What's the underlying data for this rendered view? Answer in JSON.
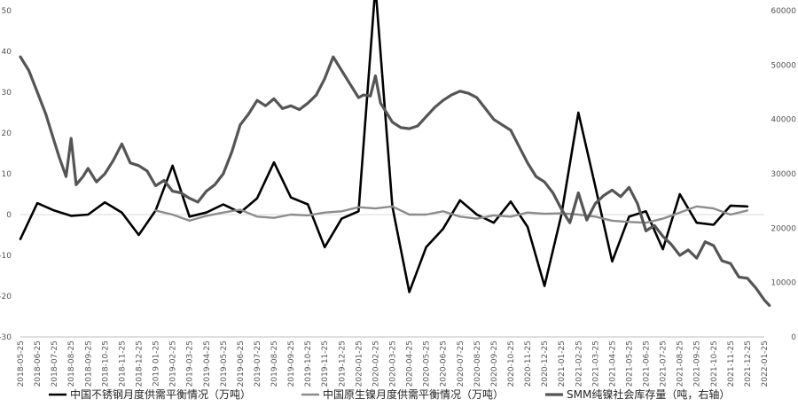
{
  "chart_data": {
    "type": "line",
    "x": [
      "2018-05-25",
      "2018-06-25",
      "2018-07-25",
      "2018-08-25",
      "2018-09-25",
      "2018-10-25",
      "2018-11-25",
      "2018-12-25",
      "2019-01-25",
      "2019-02-25",
      "2019-03-25",
      "2019-04-25",
      "2019-05-25",
      "2019-06-25",
      "2019-07-25",
      "2019-08-25",
      "2019-09-25",
      "2019-10-25",
      "2019-11-25",
      "2019-12-25",
      "2020-01-25",
      "2020-02-25",
      "2020-03-25",
      "2020-04-25",
      "2020-05-25",
      "2020-06-25",
      "2020-07-25",
      "2020-08-25",
      "2020-09-25",
      "2020-10-25",
      "2020-11-25",
      "2020-12-25",
      "2021-01-25",
      "2021-02-25",
      "2021-03-25",
      "2021-04-25",
      "2021-05-25",
      "2021-06-25",
      "2021-07-25",
      "2021-08-25",
      "2021-09-25",
      "2021-10-25",
      "2021-11-25",
      "2021-12-25",
      "2022-01-25"
    ],
    "x_tick_labels": [
      "2018-05-25",
      "2018-06-25",
      "2018-07-25",
      "2018-08-25",
      "2018-09-25",
      "2018-10-25",
      "2018-11-25",
      "2018-12-25",
      "2019 01-25",
      "2019-02-25",
      "2019-03-25",
      "2019-04-25",
      "2019-05-25",
      "2019-06-25",
      "2019-07-25",
      "2019-08-25",
      "2019-09-25",
      "2019-10-25",
      "2019-11-25",
      "2019-12-25",
      "2020-01-25",
      "2020-02-25",
      "2020-03-25",
      "2020-04-25",
      "2020-05-25",
      "2020-06-25",
      "2020-07-25",
      "2020-08-25",
      "2020-09-25",
      "2020-10-25",
      "2020-11-25",
      "2020-12-25",
      "2021-01-25",
      "2021-02-25",
      "2021-03-25",
      "2021-04-25",
      "2021-05-25",
      "2021-06-25",
      "2021-07-25",
      "2021-08-25",
      "2021-09-25",
      "2021-10-25",
      "2021-11-25",
      "2021-12-25",
      "2022-01-25"
    ],
    "y_left": {
      "min": -30,
      "max": 50,
      "ticks": [
        "-30",
        "-20",
        "-10",
        "0",
        "10",
        "20",
        "30",
        "40",
        "50"
      ]
    },
    "y_right": {
      "min": 0,
      "max": 60000,
      "ticks": [
        "0",
        "10000",
        "20000",
        "30000",
        "40000",
        "50000",
        "60000"
      ]
    },
    "grid": false,
    "legend_position": "bottom",
    "series": [
      {
        "name": "中国不锈钢月度供需平衡情况（万吨）",
        "axis": "left",
        "color": "#000000",
        "values": [
          [
            0,
            -6
          ],
          [
            1,
            2.8
          ],
          [
            2,
            1
          ],
          [
            3,
            -0.3
          ],
          [
            4,
            0
          ],
          [
            5,
            3
          ],
          [
            6,
            0.5
          ],
          [
            7,
            -5
          ],
          [
            8,
            1
          ],
          [
            9,
            12
          ],
          [
            10,
            -0.5
          ],
          [
            11,
            0.5
          ],
          [
            12,
            2.5
          ],
          [
            13,
            0.5
          ],
          [
            14,
            4
          ],
          [
            15,
            12.8
          ],
          [
            16,
            4.2
          ],
          [
            17,
            2.5
          ],
          [
            18,
            -8
          ],
          [
            19,
            -1
          ],
          [
            20,
            0.8
          ],
          [
            21,
            56
          ],
          [
            22,
            2
          ],
          [
            23,
            -19
          ],
          [
            24,
            -8
          ],
          [
            25,
            -3.5
          ],
          [
            26,
            3.5
          ],
          [
            27,
            0
          ],
          [
            28,
            -2
          ],
          [
            29,
            3.2
          ],
          [
            30,
            -3
          ],
          [
            31,
            -17.5
          ],
          [
            32,
            0
          ],
          [
            33,
            25
          ],
          [
            34,
            7
          ],
          [
            35,
            -11.5
          ],
          [
            36,
            -0.5
          ],
          [
            37,
            0.8
          ],
          [
            38,
            -8.5
          ],
          [
            39,
            5
          ],
          [
            40,
            -2
          ],
          [
            41,
            -2.5
          ],
          [
            42,
            2.2
          ],
          [
            43,
            2
          ]
        ]
      },
      {
        "name": "中国原生镍月度供需平衡情况（万吨）",
        "axis": "left",
        "color": "#8c8c8c",
        "values": [
          [
            8,
            1
          ],
          [
            9,
            0
          ],
          [
            10,
            -1.5
          ],
          [
            11,
            -0.3
          ],
          [
            12,
            0.5
          ],
          [
            13,
            1.2
          ],
          [
            14,
            -0.5
          ],
          [
            15,
            -0.8
          ],
          [
            16,
            0
          ],
          [
            17,
            -0.2
          ],
          [
            18,
            0.5
          ],
          [
            19,
            0.8
          ],
          [
            20,
            1.8
          ],
          [
            21,
            1.5
          ],
          [
            22,
            2
          ],
          [
            23,
            0
          ],
          [
            24,
            0
          ],
          [
            25,
            0.8
          ],
          [
            26,
            -0.5
          ],
          [
            27,
            -1
          ],
          [
            28,
            -0.2
          ],
          [
            29,
            -0.5
          ],
          [
            30,
            0.5
          ],
          [
            31,
            0.2
          ],
          [
            32,
            0.3
          ],
          [
            33,
            0
          ],
          [
            34,
            -0.5
          ],
          [
            35,
            -1.5
          ],
          [
            36,
            -1.8
          ],
          [
            37,
            -2
          ],
          [
            38,
            -1
          ],
          [
            39,
            0.5
          ],
          [
            40,
            2
          ],
          [
            41,
            1.5
          ],
          [
            42,
            0
          ],
          [
            43,
            1
          ]
        ]
      },
      {
        "name": "SMM纯镍社会库存量（吨，右轴）",
        "axis": "right",
        "color": "#555555",
        "values": [
          [
            0,
            51500
          ],
          [
            0.5,
            49000
          ],
          [
            1,
            45000
          ],
          [
            1.5,
            41000
          ],
          [
            2,
            36000
          ],
          [
            2.3,
            33000
          ],
          [
            2.7,
            29500
          ],
          [
            3,
            36500
          ],
          [
            3.3,
            28000
          ],
          [
            3.7,
            29500
          ],
          [
            4,
            31000
          ],
          [
            4.5,
            28500
          ],
          [
            5,
            30000
          ],
          [
            5.5,
            32500
          ],
          [
            6,
            35500
          ],
          [
            6.5,
            32000
          ],
          [
            7,
            31500
          ],
          [
            7.5,
            30500
          ],
          [
            8,
            27800
          ],
          [
            8.5,
            28800
          ],
          [
            9,
            26800
          ],
          [
            9.5,
            26500
          ],
          [
            10,
            25500
          ],
          [
            10.5,
            24800
          ],
          [
            11,
            26800
          ],
          [
            11.5,
            28000
          ],
          [
            12,
            30000
          ],
          [
            12.5,
            34000
          ],
          [
            13,
            39000
          ],
          [
            13.5,
            41000
          ],
          [
            14,
            43500
          ],
          [
            14.5,
            42500
          ],
          [
            15,
            43800
          ],
          [
            15.5,
            42000
          ],
          [
            16,
            42500
          ],
          [
            16.5,
            41800
          ],
          [
            17,
            43000
          ],
          [
            17.5,
            44500
          ],
          [
            18,
            47500
          ],
          [
            18.5,
            51500
          ],
          [
            19,
            49000
          ],
          [
            19.5,
            46500
          ],
          [
            20,
            44000
          ],
          [
            20.3,
            44500
          ],
          [
            20.7,
            44300
          ],
          [
            21,
            48000
          ],
          [
            21.3,
            43000
          ],
          [
            21.7,
            41000
          ],
          [
            22,
            39500
          ],
          [
            22.5,
            38500
          ],
          [
            23,
            38300
          ],
          [
            23.5,
            38800
          ],
          [
            24,
            40500
          ],
          [
            24.5,
            42200
          ],
          [
            25,
            43500
          ],
          [
            25.5,
            44500
          ],
          [
            26,
            45200
          ],
          [
            26.5,
            44800
          ],
          [
            27,
            44000
          ],
          [
            27.5,
            42000
          ],
          [
            28,
            40000
          ],
          [
            28.5,
            39000
          ],
          [
            29,
            38000
          ],
          [
            29.5,
            35000
          ],
          [
            30,
            32000
          ],
          [
            30.5,
            29500
          ],
          [
            31,
            28500
          ],
          [
            31.5,
            26500
          ],
          [
            32,
            23500
          ],
          [
            32.5,
            21000
          ],
          [
            33,
            26500
          ],
          [
            33.5,
            21500
          ],
          [
            34,
            24500
          ],
          [
            34.5,
            26000
          ],
          [
            35,
            27000
          ],
          [
            35.5,
            25800
          ],
          [
            36,
            27500
          ],
          [
            36.5,
            24500
          ],
          [
            37,
            19500
          ],
          [
            37.5,
            20500
          ],
          [
            38,
            18500
          ],
          [
            38.5,
            17000
          ],
          [
            39,
            15000
          ],
          [
            39.5,
            16000
          ],
          [
            40,
            14500
          ],
          [
            40.5,
            17500
          ],
          [
            41,
            16800
          ],
          [
            41.5,
            14000
          ],
          [
            42,
            13500
          ],
          [
            42.5,
            11000
          ],
          [
            43,
            10800
          ],
          [
            43.5,
            9000
          ],
          [
            44,
            6800
          ],
          [
            44.3,
            5800
          ]
        ]
      }
    ]
  }
}
